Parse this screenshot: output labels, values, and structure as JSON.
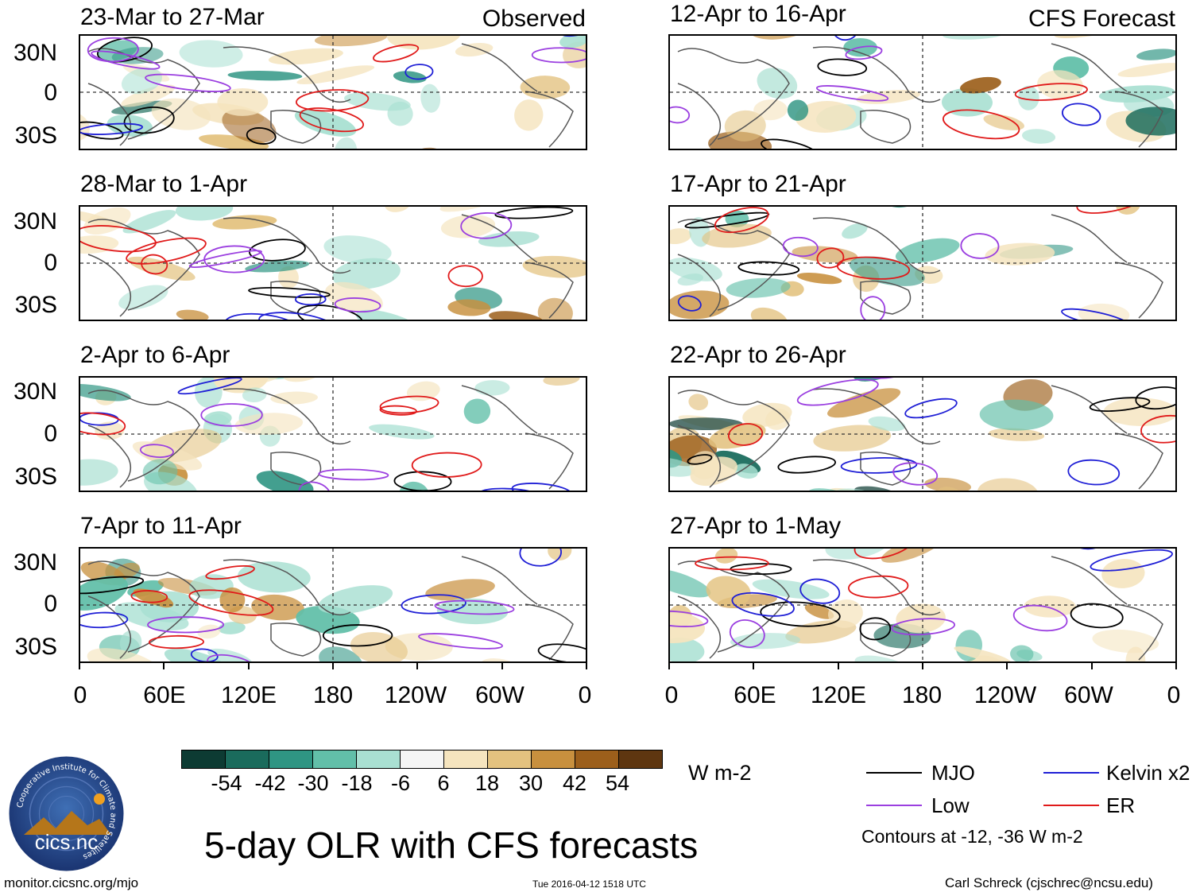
{
  "chart_data": {
    "type": "heatmap",
    "title": "5-day OLR with CFS forecasts",
    "colorbar": {
      "unit": "W m-2",
      "ticks": [
        "-54",
        "-42",
        "-30",
        "-18",
        "-6",
        "6",
        "18",
        "30",
        "42",
        "54"
      ],
      "colors": [
        "#0d3b33",
        "#1a6b5c",
        "#2f9583",
        "#62bfa9",
        "#a9e0d2",
        "#d6f0ea",
        "#f5f5f5",
        "#f5e4be",
        "#e3c27f",
        "#c8903e",
        "#9c5f1b",
        "#5e3610"
      ]
    },
    "x_ticks": [
      "0",
      "60E",
      "120E",
      "180",
      "120W",
      "60W",
      "0"
    ],
    "y_ticks": [
      "30N",
      "0",
      "30S"
    ],
    "left_column_label": "Observed",
    "right_column_label": "CFS Forecast",
    "panels": [
      {
        "title": "23-Mar to 27-Mar",
        "column": "left",
        "row": 1
      },
      {
        "title": "28-Mar to 1-Apr",
        "column": "left",
        "row": 2
      },
      {
        "title": "2-Apr to 6-Apr",
        "column": "left",
        "row": 3
      },
      {
        "title": "7-Apr to 11-Apr",
        "column": "left",
        "row": 4
      },
      {
        "title": "12-Apr to 16-Apr",
        "column": "right",
        "row": 1
      },
      {
        "title": "17-Apr to 21-Apr",
        "column": "right",
        "row": 2
      },
      {
        "title": "22-Apr to 26-Apr",
        "column": "right",
        "row": 3
      },
      {
        "title": "27-Apr to 1-May",
        "column": "right",
        "row": 4
      }
    ],
    "legend": {
      "items": [
        {
          "label": "MJO",
          "color": "#000000"
        },
        {
          "label": "Kelvin x2",
          "color": "#1f1fd6"
        },
        {
          "label": "Low",
          "color": "#9b3fe0"
        },
        {
          "label": "ER",
          "color": "#e01a1a"
        }
      ],
      "note": "Contours at -12, -36 W m-2"
    }
  },
  "footer": {
    "left": "monitor.cicsnc.org/mjo",
    "center": "Tue 2016-04-12 1518 UTC",
    "right": "Carl Schreck (cjschrec@ncsu.edu)"
  },
  "logo": {
    "ring_text": "Cooperative Institute for Climate and Satellites",
    "text": "cics.nc"
  }
}
